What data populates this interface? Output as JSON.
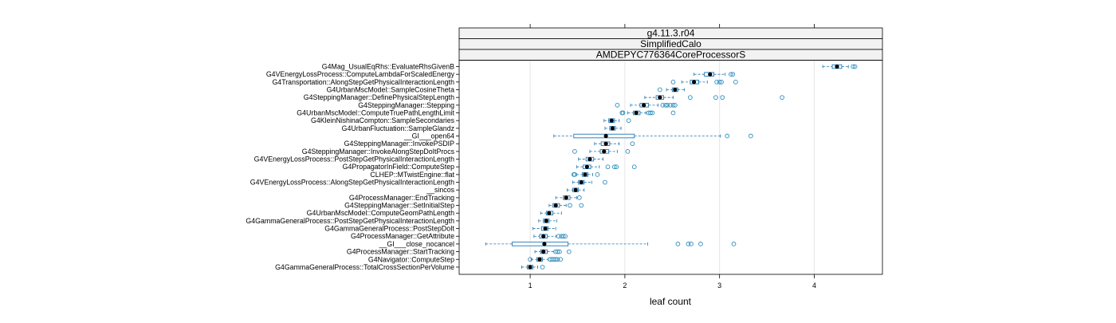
{
  "chart_data": {
    "type": "box",
    "strips": [
      "g4.11.3.r04",
      "SimplifiedCalo",
      "AMDEPYC776364CoreProcessorS"
    ],
    "xlabel": "leaf count",
    "ylabel": "",
    "xlim": [
      0.25,
      4.72
    ],
    "xticks": [
      1,
      2,
      3,
      4
    ],
    "grid": true,
    "colors": {
      "box": "#1f78b4",
      "outlier": "#2b8cbe",
      "median": "#000000",
      "grid": "#e6e6e6",
      "strip": "#f2f2f2"
    },
    "categories": [
      "G4Mag_UsualEqRhs::EvaluateRhsGivenB",
      "G4VEnergyLossProcess::ComputeLambdaForScaledEnergy",
      "G4Transportation::AlongStepGetPhysicalInteractionLength",
      "G4UrbanMscModel::SampleCosineTheta",
      "G4SteppingManager::DefinePhysicalStepLength",
      "G4SteppingManager::Stepping",
      "G4UrbanMscModel::ComputeTruePathLengthLimit",
      "G4KleinNishinaCompton::SampleSecondaries",
      "G4UrbanFluctuation::SampleGlandz",
      "__GI___open64",
      "G4SteppingManager::InvokePSDIP",
      "G4SteppingManager::InvokeAlongStepDoItProcs",
      "G4VEnergyLossProcess::PostStepGetPhysicalInteractionLength",
      "G4PropagatorInField::ComputeStep",
      "CLHEP::MTwistEngine::flat",
      "G4VEnergyLossProcess::AlongStepGetPhysicalInteractionLength",
      "__sincos",
      "G4ProcessManager::EndTracking",
      "G4SteppingManager::SetInitialStep",
      "G4UrbanMscModel::ComputeGeomPathLength",
      "G4GammaGeneralProcess::PostStepGetPhysicalInteractionLength",
      "G4GammaGeneralProcess::PostStepDoIt",
      "G4ProcessManager::GetAttribute",
      "__GI___close_nocancel",
      "G4ProcessManager::StartTracking",
      "G4Navigator::ComputeStep",
      "G4GammaGeneralProcess::TotalCrossSectionPerVolume"
    ],
    "boxes": [
      {
        "min": 4.09,
        "q1": 4.19,
        "median": 4.24,
        "q3": 4.29,
        "max": 4.36,
        "outliers": [
          4.41,
          4.43
        ]
      },
      {
        "min": 2.73,
        "q1": 2.84,
        "median": 2.9,
        "q3": 2.94,
        "max": 3.06,
        "outliers": [
          3.12,
          3.14
        ]
      },
      {
        "min": 2.6,
        "q1": 2.69,
        "median": 2.73,
        "q3": 2.78,
        "max": 2.87,
        "outliers": [
          2.51,
          2.97,
          3.0,
          3.02,
          3.17
        ]
      },
      {
        "min": 2.44,
        "q1": 2.5,
        "median": 2.53,
        "q3": 2.56,
        "max": 2.63,
        "outliers": [
          2.37
        ]
      },
      {
        "min": 2.21,
        "q1": 2.33,
        "median": 2.37,
        "q3": 2.41,
        "max": 2.51,
        "outliers": [
          2.69,
          2.96,
          3.03,
          3.66
        ]
      },
      {
        "min": 2.06,
        "q1": 2.16,
        "median": 2.2,
        "q3": 2.25,
        "max": 2.35,
        "outliers": [
          1.92,
          2.4,
          2.43,
          2.45,
          2.48,
          2.51,
          2.53
        ]
      },
      {
        "min": 2.03,
        "q1": 2.09,
        "median": 2.12,
        "q3": 2.16,
        "max": 2.22,
        "outliers": [
          1.97,
          1.98,
          2.25,
          2.27,
          2.29,
          2.51
        ]
      },
      {
        "min": 1.78,
        "q1": 1.83,
        "median": 1.86,
        "q3": 1.89,
        "max": 1.94,
        "outliers": [
          2.04
        ]
      },
      {
        "min": 1.79,
        "q1": 1.84,
        "median": 1.87,
        "q3": 1.9,
        "max": 1.96,
        "outliers": []
      },
      {
        "min": 1.25,
        "q1": 1.46,
        "median": 1.8,
        "q3": 2.1,
        "max": 3.01,
        "outliers": [
          3.08,
          3.33
        ]
      },
      {
        "min": 1.68,
        "q1": 1.75,
        "median": 1.8,
        "q3": 1.84,
        "max": 1.94,
        "outliers": [
          2.08
        ]
      },
      {
        "min": 1.63,
        "q1": 1.74,
        "median": 1.78,
        "q3": 1.83,
        "max": 1.92,
        "outliers": [
          1.47,
          2.03
        ]
      },
      {
        "min": 1.51,
        "q1": 1.59,
        "median": 1.63,
        "q3": 1.67,
        "max": 1.77,
        "outliers": []
      },
      {
        "min": 1.49,
        "q1": 1.56,
        "median": 1.6,
        "q3": 1.64,
        "max": 1.73,
        "outliers": [
          1.82,
          1.89,
          1.91,
          2.1
        ]
      },
      {
        "min": 1.49,
        "q1": 1.55,
        "median": 1.58,
        "q3": 1.61,
        "max": 1.66,
        "outliers": [
          1.46,
          1.47,
          1.71
        ]
      },
      {
        "min": 1.45,
        "q1": 1.51,
        "median": 1.54,
        "q3": 1.57,
        "max": 1.65,
        "outliers": [
          1.79
        ]
      },
      {
        "min": 1.39,
        "q1": 1.45,
        "median": 1.48,
        "q3": 1.51,
        "max": 1.57,
        "outliers": []
      },
      {
        "min": 1.27,
        "q1": 1.35,
        "median": 1.38,
        "q3": 1.42,
        "max": 1.49,
        "outliers": [
          1.52
        ]
      },
      {
        "min": 1.2,
        "q1": 1.24,
        "median": 1.27,
        "q3": 1.31,
        "max": 1.38,
        "outliers": [
          1.42,
          1.54
        ]
      },
      {
        "min": 1.11,
        "q1": 1.17,
        "median": 1.2,
        "q3": 1.24,
        "max": 1.33,
        "outliers": []
      },
      {
        "min": 1.09,
        "q1": 1.14,
        "median": 1.17,
        "q3": 1.2,
        "max": 1.28,
        "outliers": []
      },
      {
        "min": 1.03,
        "q1": 1.12,
        "median": 1.16,
        "q3": 1.19,
        "max": 1.27,
        "outliers": []
      },
      {
        "min": 1.04,
        "q1": 1.1,
        "median": 1.14,
        "q3": 1.18,
        "max": 1.27,
        "outliers": [
          1.3,
          1.33,
          1.35,
          1.37
        ]
      },
      {
        "min": 0.53,
        "q1": 0.81,
        "median": 1.15,
        "q3": 1.4,
        "max": 2.24,
        "outliers": [
          2.56,
          2.67,
          2.7,
          2.8,
          3.15
        ]
      },
      {
        "min": 1.05,
        "q1": 1.11,
        "median": 1.14,
        "q3": 1.18,
        "max": 1.25,
        "outliers": [
          1.27,
          1.29,
          1.31,
          1.41
        ]
      },
      {
        "min": 1.01,
        "q1": 1.07,
        "median": 1.1,
        "q3": 1.13,
        "max": 1.19,
        "outliers": [
          1.0,
          1.21,
          1.23,
          1.25,
          1.27,
          1.29,
          1.32
        ]
      },
      {
        "min": 0.91,
        "q1": 0.97,
        "median": 1.0,
        "q3": 1.03,
        "max": 1.08,
        "outliers": [
          1.13
        ]
      }
    ]
  }
}
